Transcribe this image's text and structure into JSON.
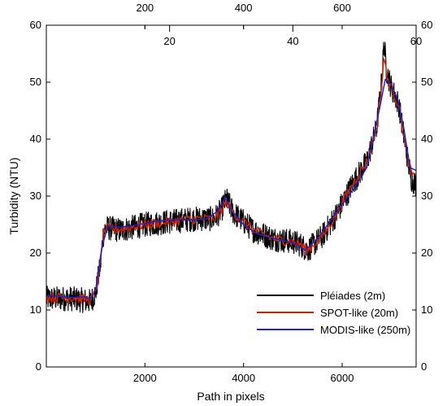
{
  "chart_data": {
    "type": "line",
    "xlabel": "Path in pixels",
    "ylabel": "Turbidity (NTU)",
    "xlim": [
      0,
      7500
    ],
    "ylim": [
      0,
      60
    ],
    "x_ticks": [
      2000,
      4000,
      6000
    ],
    "y_ticks": [
      0,
      10,
      20,
      30,
      40,
      50,
      60
    ],
    "top_axis_outer": {
      "ticks": [
        200,
        400,
        600
      ],
      "scale": 10
    },
    "top_axis_inner": {
      "ticks": [
        20,
        40,
        60
      ],
      "scale": 125
    },
    "grid": false,
    "legend_position": "bottom-right",
    "series": [
      {
        "name": "Pléiades (2m)",
        "color": "#000000",
        "noise": 2.2,
        "x": [
          0,
          500,
          900,
          1000,
          1100,
          1150,
          1200,
          1500,
          2000,
          2500,
          3000,
          3400,
          3550,
          3650,
          3800,
          4200,
          4600,
          5000,
          5150,
          5300,
          5600,
          5900,
          6200,
          6500,
          6700,
          6800,
          6850,
          6900,
          7000,
          7150,
          7300,
          7400,
          7500
        ],
        "y": [
          12,
          12,
          11.5,
          13,
          18,
          23,
          24.5,
          24,
          25,
          25.5,
          26,
          26,
          27.5,
          29.5,
          27,
          24,
          22.5,
          22,
          21.5,
          20.5,
          23,
          27,
          32,
          36,
          42,
          50,
          57,
          52,
          49,
          46,
          38,
          33,
          32
        ]
      },
      {
        "name": "SPOT-like (20m)",
        "color": "#cc2200",
        "noise": 0.9,
        "x": [
          0,
          500,
          900,
          1000,
          1100,
          1150,
          1200,
          1500,
          2000,
          2500,
          3000,
          3400,
          3550,
          3650,
          3800,
          4200,
          4600,
          5000,
          5150,
          5300,
          5600,
          5900,
          6200,
          6500,
          6700,
          6800,
          6850,
          6900,
          7000,
          7150,
          7300,
          7400,
          7500
        ],
        "y": [
          12.2,
          12.2,
          11.8,
          13,
          18,
          23,
          24.3,
          24.2,
          25,
          25.5,
          26,
          26,
          27.5,
          29,
          27,
          24,
          22.5,
          22,
          21.5,
          20.5,
          23,
          27,
          32,
          36,
          42,
          49,
          55,
          51,
          49,
          46,
          38,
          34,
          33
        ]
      },
      {
        "name": "MODIS-like (250m)",
        "color": "#2222cc",
        "noise": 0,
        "x": [
          0,
          250,
          500,
          750,
          900,
          1000,
          1125,
          1250,
          1500,
          1750,
          2000,
          2250,
          2500,
          2750,
          3000,
          3250,
          3500,
          3625,
          3750,
          4000,
          4250,
          4500,
          4750,
          5000,
          5250,
          5500,
          5750,
          6000,
          6250,
          6500,
          6625,
          6750,
          6875,
          7000,
          7125,
          7250,
          7375,
          7500
        ],
        "y": [
          12.5,
          12.4,
          12.2,
          12.3,
          12,
          13.5,
          21,
          24.8,
          24.5,
          24.8,
          25.2,
          25.6,
          25.8,
          25.9,
          25.8,
          26,
          27.5,
          29.8,
          27.5,
          25,
          23.5,
          22.8,
          22.3,
          21.8,
          20.5,
          22.5,
          25.5,
          28.5,
          31.5,
          35,
          40,
          45,
          50.5,
          49.5,
          47,
          42,
          35,
          34.5
        ]
      }
    ]
  }
}
